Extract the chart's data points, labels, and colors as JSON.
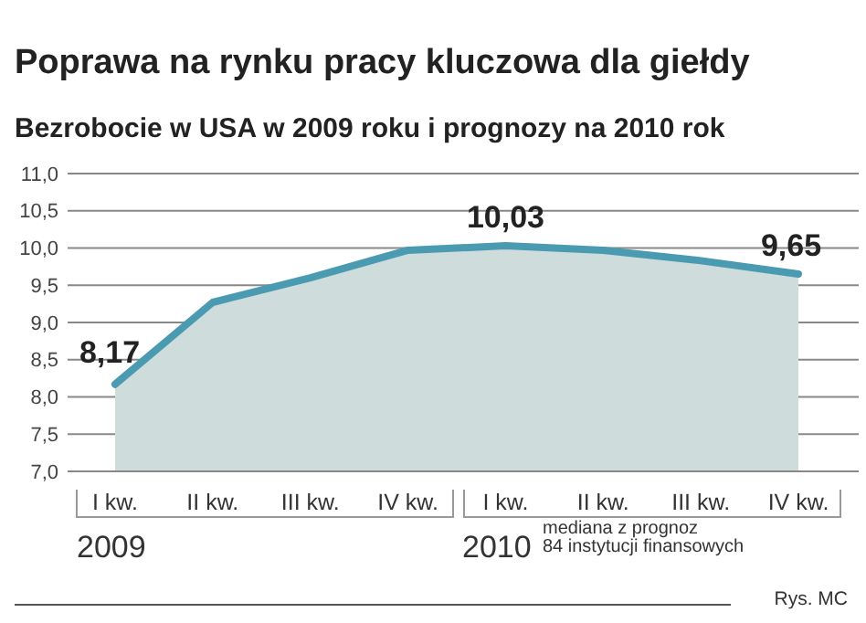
{
  "chart_data": {
    "type": "area",
    "title": "Poprawa na rynku pracy kluczowa dla giełdy",
    "subtitle": "Bezrobocie w USA w 2009 roku i prognozy na 2010 rok",
    "categories": [
      "I kw.",
      "II kw.",
      "III kw.",
      "IV kw.",
      "I kw.",
      "II kw.",
      "III kw.",
      "IV kw."
    ],
    "series": [
      {
        "color": "#4a9bb2",
        "values": [
          8.17,
          9.27,
          9.6,
          9.97,
          10.03,
          9.97,
          9.83,
          9.65
        ],
        "value_labels": [
          "8,17",
          null,
          null,
          null,
          "10,03",
          null,
          null,
          "9,65"
        ]
      }
    ],
    "ylim": [
      7,
      11
    ],
    "yticks": [
      {
        "value": 7,
        "label": "7,0"
      },
      {
        "value": 7.5,
        "label": "7,5"
      },
      {
        "value": 8,
        "label": "8,0"
      },
      {
        "value": 8.5,
        "label": "8,5"
      },
      {
        "value": 9,
        "label": "9,0"
      },
      {
        "value": 9.5,
        "label": "9,5"
      },
      {
        "value": 10,
        "label": "10,0"
      },
      {
        "value": 10.5,
        "label": "10,5"
      },
      {
        "value": 11,
        "label": "11,0"
      }
    ],
    "grid": "y",
    "annotations": [
      "2009",
      "2010",
      "mediana z prognoz\n84 instytucji finansowych",
      "Rys. MC"
    ]
  }
}
